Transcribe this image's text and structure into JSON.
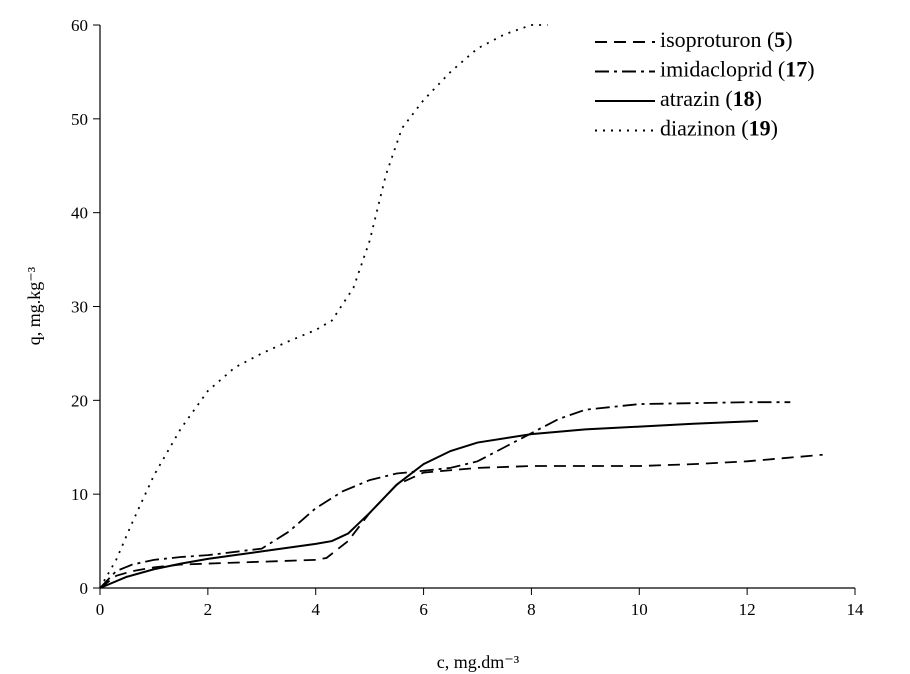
{
  "chart_data": {
    "type": "line",
    "x_label": "c, mg.dm⁻³",
    "y_label": "q, mg.kg⁻³",
    "xlim": [
      0,
      14
    ],
    "xticks": [
      0,
      2,
      4,
      6,
      8,
      10,
      12,
      14
    ],
    "ylim": [
      0,
      60
    ],
    "yticks": [
      0,
      10,
      20,
      30,
      40,
      50,
      60
    ],
    "legend": "upper right",
    "series": [
      {
        "name": "isoproturon (5)",
        "color": "#000000",
        "line_style": "dashed",
        "x": [
          0,
          0.3,
          0.6,
          1,
          1.5,
          2,
          3,
          4,
          4.2,
          4.6,
          5,
          5.5,
          6,
          7,
          8,
          10,
          11,
          12,
          13.4
        ],
        "values": [
          0,
          1.3,
          1.8,
          2.2,
          2.5,
          2.6,
          2.8,
          3,
          3.2,
          5,
          8,
          11,
          12.3,
          12.8,
          13,
          13,
          13.2,
          13.5,
          14.2
        ]
      },
      {
        "name": "imidacloprid (17)",
        "color": "#000000",
        "line_style": "dashdot",
        "x": [
          0,
          0.3,
          0.6,
          1,
          1.5,
          2,
          3,
          3.5,
          4,
          4.5,
          5,
          5.5,
          6,
          6.5,
          7,
          7.5,
          8,
          8.5,
          9,
          10,
          11,
          12,
          12.8
        ],
        "values": [
          0,
          1.8,
          2.5,
          3,
          3.3,
          3.5,
          4.2,
          6,
          8.5,
          10.3,
          11.5,
          12.2,
          12.5,
          12.8,
          13.5,
          15,
          16.5,
          18,
          19,
          19.6,
          19.7,
          19.8,
          19.8
        ]
      },
      {
        "name": "atrazin (18)",
        "color": "#000000",
        "line_style": "solid",
        "x": [
          0,
          0.5,
          1,
          1.5,
          2,
          2.5,
          3,
          3.5,
          4,
          4.3,
          4.6,
          5,
          5.5,
          6,
          6.5,
          7,
          8,
          9,
          10,
          11,
          12.2
        ],
        "values": [
          0,
          1.2,
          2,
          2.6,
          3.1,
          3.5,
          3.9,
          4.3,
          4.7,
          5,
          5.8,
          8,
          11,
          13.2,
          14.6,
          15.5,
          16.4,
          16.9,
          17.2,
          17.5,
          17.8
        ]
      },
      {
        "name": "diazinon (19)",
        "color": "#000000",
        "line_style": "dotted",
        "x": [
          0,
          0.3,
          0.6,
          1,
          1.5,
          2,
          2.5,
          3,
          3.5,
          4,
          4.3,
          4.7,
          5,
          5.3,
          5.6,
          6,
          6.5,
          7,
          7.5,
          8,
          8.3
        ],
        "values": [
          0,
          3,
          7,
          12,
          17,
          21,
          23.5,
          25,
          26.3,
          27.5,
          28.5,
          32,
          37,
          44,
          49,
          52,
          55,
          57.5,
          59,
          60,
          60
        ]
      }
    ]
  }
}
